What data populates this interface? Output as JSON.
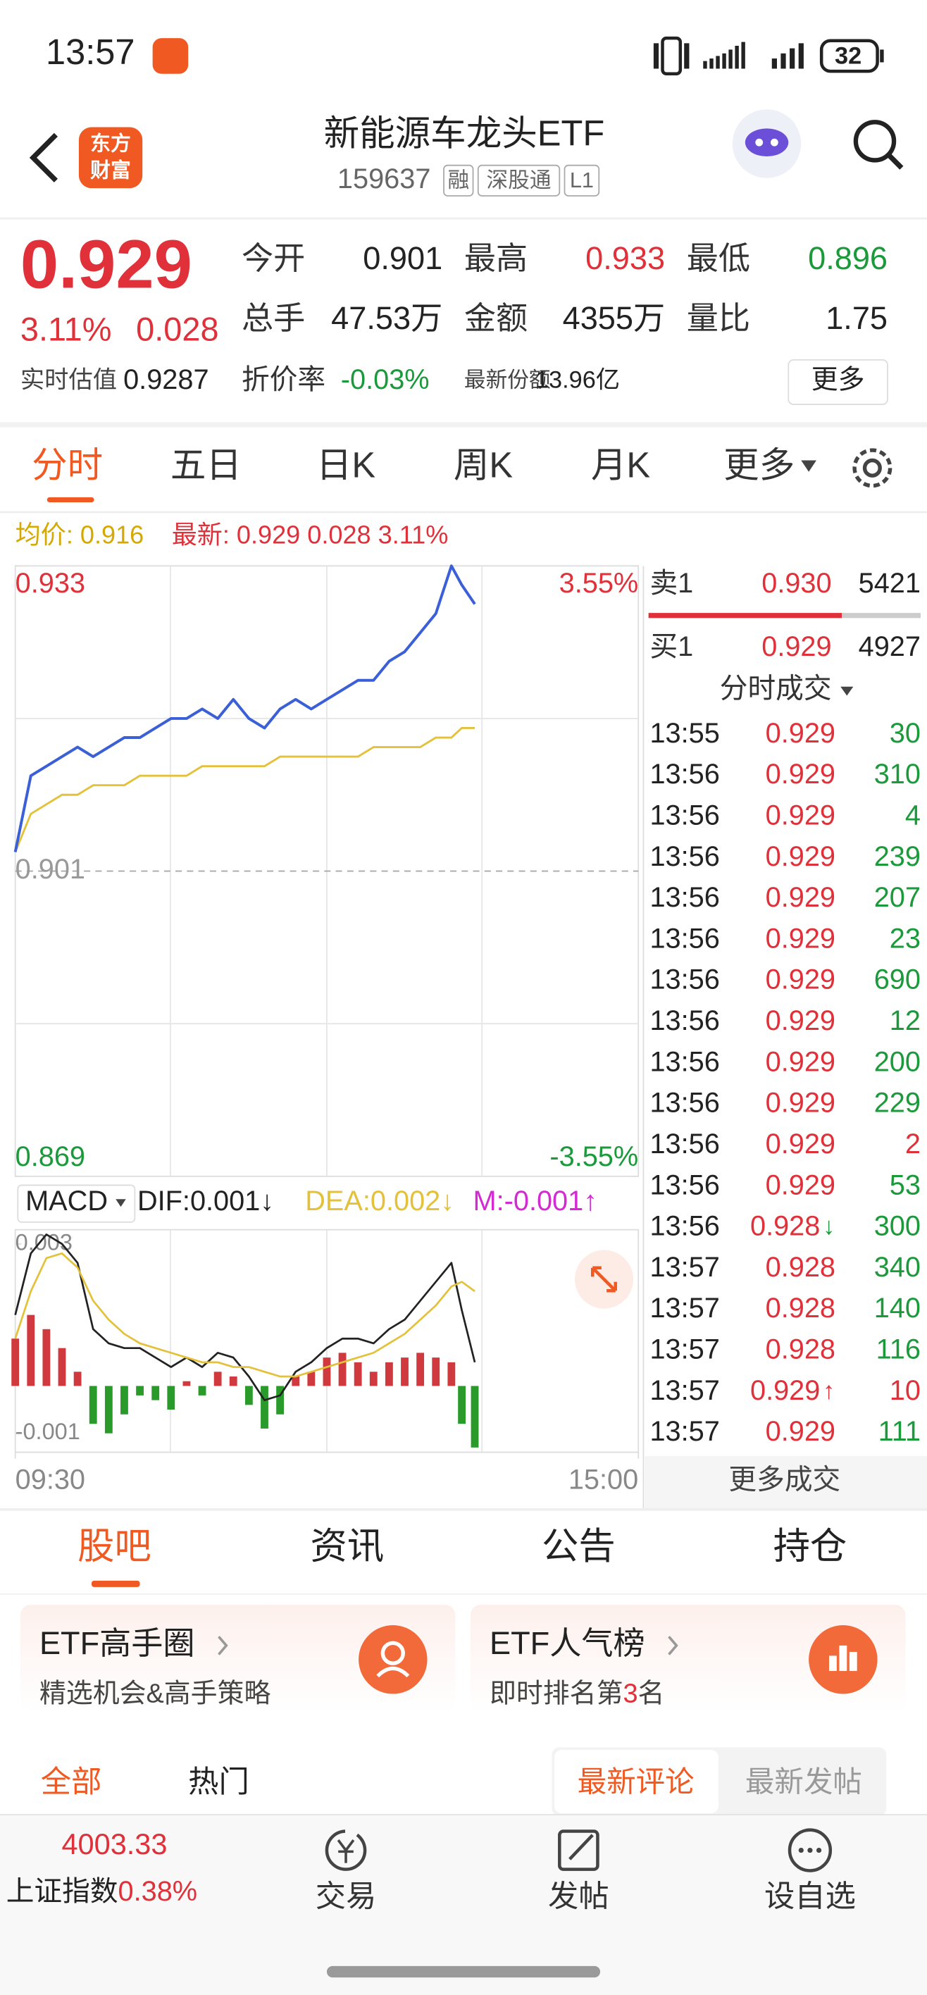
{
  "status_bar": {
    "time": "13:57",
    "battery": "32"
  },
  "header": {
    "logo": [
      "东方",
      "财富"
    ],
    "title": "新能源车龙头ETF",
    "code": "159637",
    "tags": [
      "融",
      "深股通",
      "L1"
    ]
  },
  "quote": {
    "price": "0.929",
    "change_pct": "3.11%",
    "change": "0.028",
    "stats": [
      [
        "今开",
        "0.901"
      ],
      [
        "最高",
        "0.933"
      ],
      [
        "最低",
        "0.896"
      ],
      [
        "总手",
        "47.53万"
      ],
      [
        "金额",
        "4355万"
      ],
      [
        "量比",
        "1.75"
      ]
    ],
    "est_label": "实时估值",
    "est_value": "0.9287",
    "discount_label": "折价率",
    "discount_value": "-0.03%",
    "shares_label": "最新份额",
    "shares_value": "13.96亿",
    "more": "更多"
  },
  "tabs": [
    "分时",
    "五日",
    "日K",
    "周K",
    "月K",
    "更多"
  ],
  "legend": {
    "avg": "均价: 0.916",
    "latest": "最新: 0.929 0.028 3.11%"
  },
  "chart_data": [
    {
      "type": "line",
      "x": [
        0,
        6,
        12,
        18,
        24,
        30,
        36,
        42,
        48,
        54,
        60,
        66,
        72,
        78,
        84,
        90,
        96,
        102,
        108,
        114,
        120,
        126,
        132,
        138,
        144,
        150,
        156,
        162,
        168,
        172,
        177
      ],
      "xlim": [
        0,
        240
      ],
      "xticks": [
        {
          "value": 0,
          "label": "09:30"
        },
        {
          "value": 240,
          "label": "15:00"
        }
      ],
      "ylim": [
        0.869,
        0.933
      ],
      "yticks": [
        0.933,
        0.901,
        0.869
      ],
      "y2lim": [
        -3.55,
        3.55
      ],
      "y2ticks": [
        {
          "value": 3.55,
          "label": "3.55%"
        },
        {
          "value": -3.55,
          "label": "-3.55%"
        }
      ],
      "series": [
        {
          "color": "#3b5fd6",
          "values": [
            0.903,
            0.911,
            0.912,
            0.913,
            0.914,
            0.913,
            0.914,
            0.915,
            0.915,
            0.916,
            0.917,
            0.917,
            0.918,
            0.917,
            0.919,
            0.917,
            0.916,
            0.918,
            0.919,
            0.918,
            0.919,
            0.92,
            0.921,
            0.921,
            0.923,
            0.924,
            0.926,
            0.928,
            0.933,
            0.931,
            0.929
          ]
        },
        {
          "color": "#e3c13a",
          "values": [
            0.903,
            0.907,
            0.908,
            0.909,
            0.909,
            0.91,
            0.91,
            0.91,
            0.911,
            0.911,
            0.911,
            0.911,
            0.912,
            0.912,
            0.912,
            0.912,
            0.912,
            0.913,
            0.913,
            0.913,
            0.913,
            0.913,
            0.913,
            0.914,
            0.914,
            0.914,
            0.914,
            0.915,
            0.915,
            0.916,
            0.916
          ]
        }
      ]
    },
    {
      "type": "macd",
      "title": "MACD",
      "labels": [
        {
          "text": "DIF:0.001↓",
          "color": "#222222"
        },
        {
          "text": "DEA:0.002↓",
          "color": "#e3c13a"
        },
        {
          "text": "M:-0.001↑",
          "color": "#d42ad4"
        }
      ],
      "x": [
        0,
        6,
        12,
        18,
        24,
        30,
        36,
        42,
        48,
        54,
        60,
        66,
        72,
        78,
        84,
        90,
        96,
        102,
        108,
        114,
        120,
        126,
        132,
        138,
        144,
        150,
        156,
        162,
        168,
        172,
        177
      ],
      "xlim": [
        0,
        240
      ],
      "ylim": [
        -0.0014,
        0.0033
      ],
      "yticks": [
        0.003,
        -0.001
      ],
      "series": [
        {
          "color": "#222222",
          "values": [
            0.0015,
            0.0028,
            0.0032,
            0.003,
            0.0026,
            0.0012,
            0.0009,
            0.0008,
            0.0008,
            0.0006,
            0.0004,
            0.0006,
            0.0004,
            0.0007,
            0.0006,
            0.0002,
            -0.0003,
            -0.0002,
            0.0003,
            0.0005,
            0.0008,
            0.001,
            0.001,
            0.0009,
            0.0012,
            0.0014,
            0.0018,
            0.0022,
            0.0026,
            0.0016,
            0.0005
          ]
        },
        {
          "color": "#e3c13a",
          "values": [
            0.001,
            0.002,
            0.0027,
            0.0028,
            0.0025,
            0.0018,
            0.0014,
            0.0011,
            0.0009,
            0.0008,
            0.0007,
            0.0006,
            0.0005,
            0.0005,
            0.0004,
            0.0004,
            0.0003,
            0.0002,
            0.0002,
            0.0003,
            0.0004,
            0.0005,
            0.0006,
            0.0007,
            0.0009,
            0.0011,
            0.0014,
            0.0017,
            0.0021,
            0.0022,
            0.002
          ]
        },
        {
          "style": "bar",
          "color": "#d0393e",
          "down_color": "#2a9a2a",
          "values": [
            0.001,
            0.0015,
            0.0012,
            0.0008,
            0.0003,
            -0.0008,
            -0.001,
            -0.0006,
            -0.0002,
            -0.0003,
            -0.0005,
            0.0001,
            -0.0002,
            0.0003,
            0.0002,
            -0.0004,
            -0.0009,
            -0.0006,
            0.0002,
            0.0003,
            0.0006,
            0.0007,
            0.0005,
            0.0003,
            0.0005,
            0.0006,
            0.0007,
            0.0006,
            0.0005,
            -0.0008,
            -0.0013
          ]
        }
      ]
    }
  ],
  "order_book": {
    "sell": [
      "卖1",
      "0.930",
      "5421"
    ],
    "buy": [
      "买1",
      "0.929",
      "4927"
    ]
  },
  "trades": {
    "title": "分时成交",
    "more": "更多成交",
    "rows": [
      {
        "time": "13:55",
        "price": "0.929",
        "volume": "30",
        "vol_color": "#1a9a3a"
      },
      {
        "time": "13:56",
        "price": "0.929",
        "volume": "310",
        "vol_color": "#1a9a3a"
      },
      {
        "time": "13:56",
        "price": "0.929",
        "volume": "4",
        "vol_color": "#1a9a3a"
      },
      {
        "time": "13:56",
        "price": "0.929",
        "volume": "239",
        "vol_color": "#1a9a3a"
      },
      {
        "time": "13:56",
        "price": "0.929",
        "volume": "207",
        "vol_color": "#1a9a3a"
      },
      {
        "time": "13:56",
        "price": "0.929",
        "volume": "23",
        "vol_color": "#1a9a3a"
      },
      {
        "time": "13:56",
        "price": "0.929",
        "volume": "690",
        "vol_color": "#1a9a3a"
      },
      {
        "time": "13:56",
        "price": "0.929",
        "volume": "12",
        "vol_color": "#1a9a3a"
      },
      {
        "time": "13:56",
        "price": "0.929",
        "volume": "200",
        "vol_color": "#1a9a3a"
      },
      {
        "time": "13:56",
        "price": "0.929",
        "volume": "229",
        "vol_color": "#1a9a3a"
      },
      {
        "time": "13:56",
        "price": "0.929",
        "volume": "2",
        "vol_color": "#e0313a"
      },
      {
        "time": "13:56",
        "price": "0.929",
        "volume": "53",
        "vol_color": "#1a9a3a"
      },
      {
        "time": "13:56",
        "price": "0.928",
        "arrow": "↓",
        "arrow_color": "#1a9a3a",
        "volume": "300",
        "vol_color": "#1a9a3a"
      },
      {
        "time": "13:57",
        "price": "0.928",
        "volume": "340",
        "vol_color": "#1a9a3a"
      },
      {
        "time": "13:57",
        "price": "0.928",
        "volume": "140",
        "vol_color": "#1a9a3a"
      },
      {
        "time": "13:57",
        "price": "0.928",
        "volume": "116",
        "vol_color": "#1a9a3a"
      },
      {
        "time": "13:57",
        "price": "0.929",
        "arrow": "↑",
        "arrow_color": "#e0313a",
        "volume": "10",
        "vol_color": "#e0313a"
      },
      {
        "time": "13:57",
        "price": "0.929",
        "volume": "111",
        "vol_color": "#1a9a3a"
      }
    ]
  },
  "community": {
    "tabs": [
      "股吧",
      "资讯",
      "公告",
      "持仓"
    ],
    "cards": [
      {
        "title": "ETF高手圈",
        "subtitle": [
          "精选机会&高手策略"
        ]
      },
      {
        "title": "ETF人气榜",
        "subtitle": [
          "即时排名第",
          "3",
          "名"
        ]
      }
    ],
    "filters": [
      "全部",
      "热门"
    ],
    "sort": [
      "最新评论",
      "最新发帖"
    ]
  },
  "bottom_nav": {
    "index_value": "4003.33",
    "index_name": "上证指数",
    "index_change": "0.38%",
    "items": [
      "交易",
      "发帖",
      "设自选"
    ]
  }
}
